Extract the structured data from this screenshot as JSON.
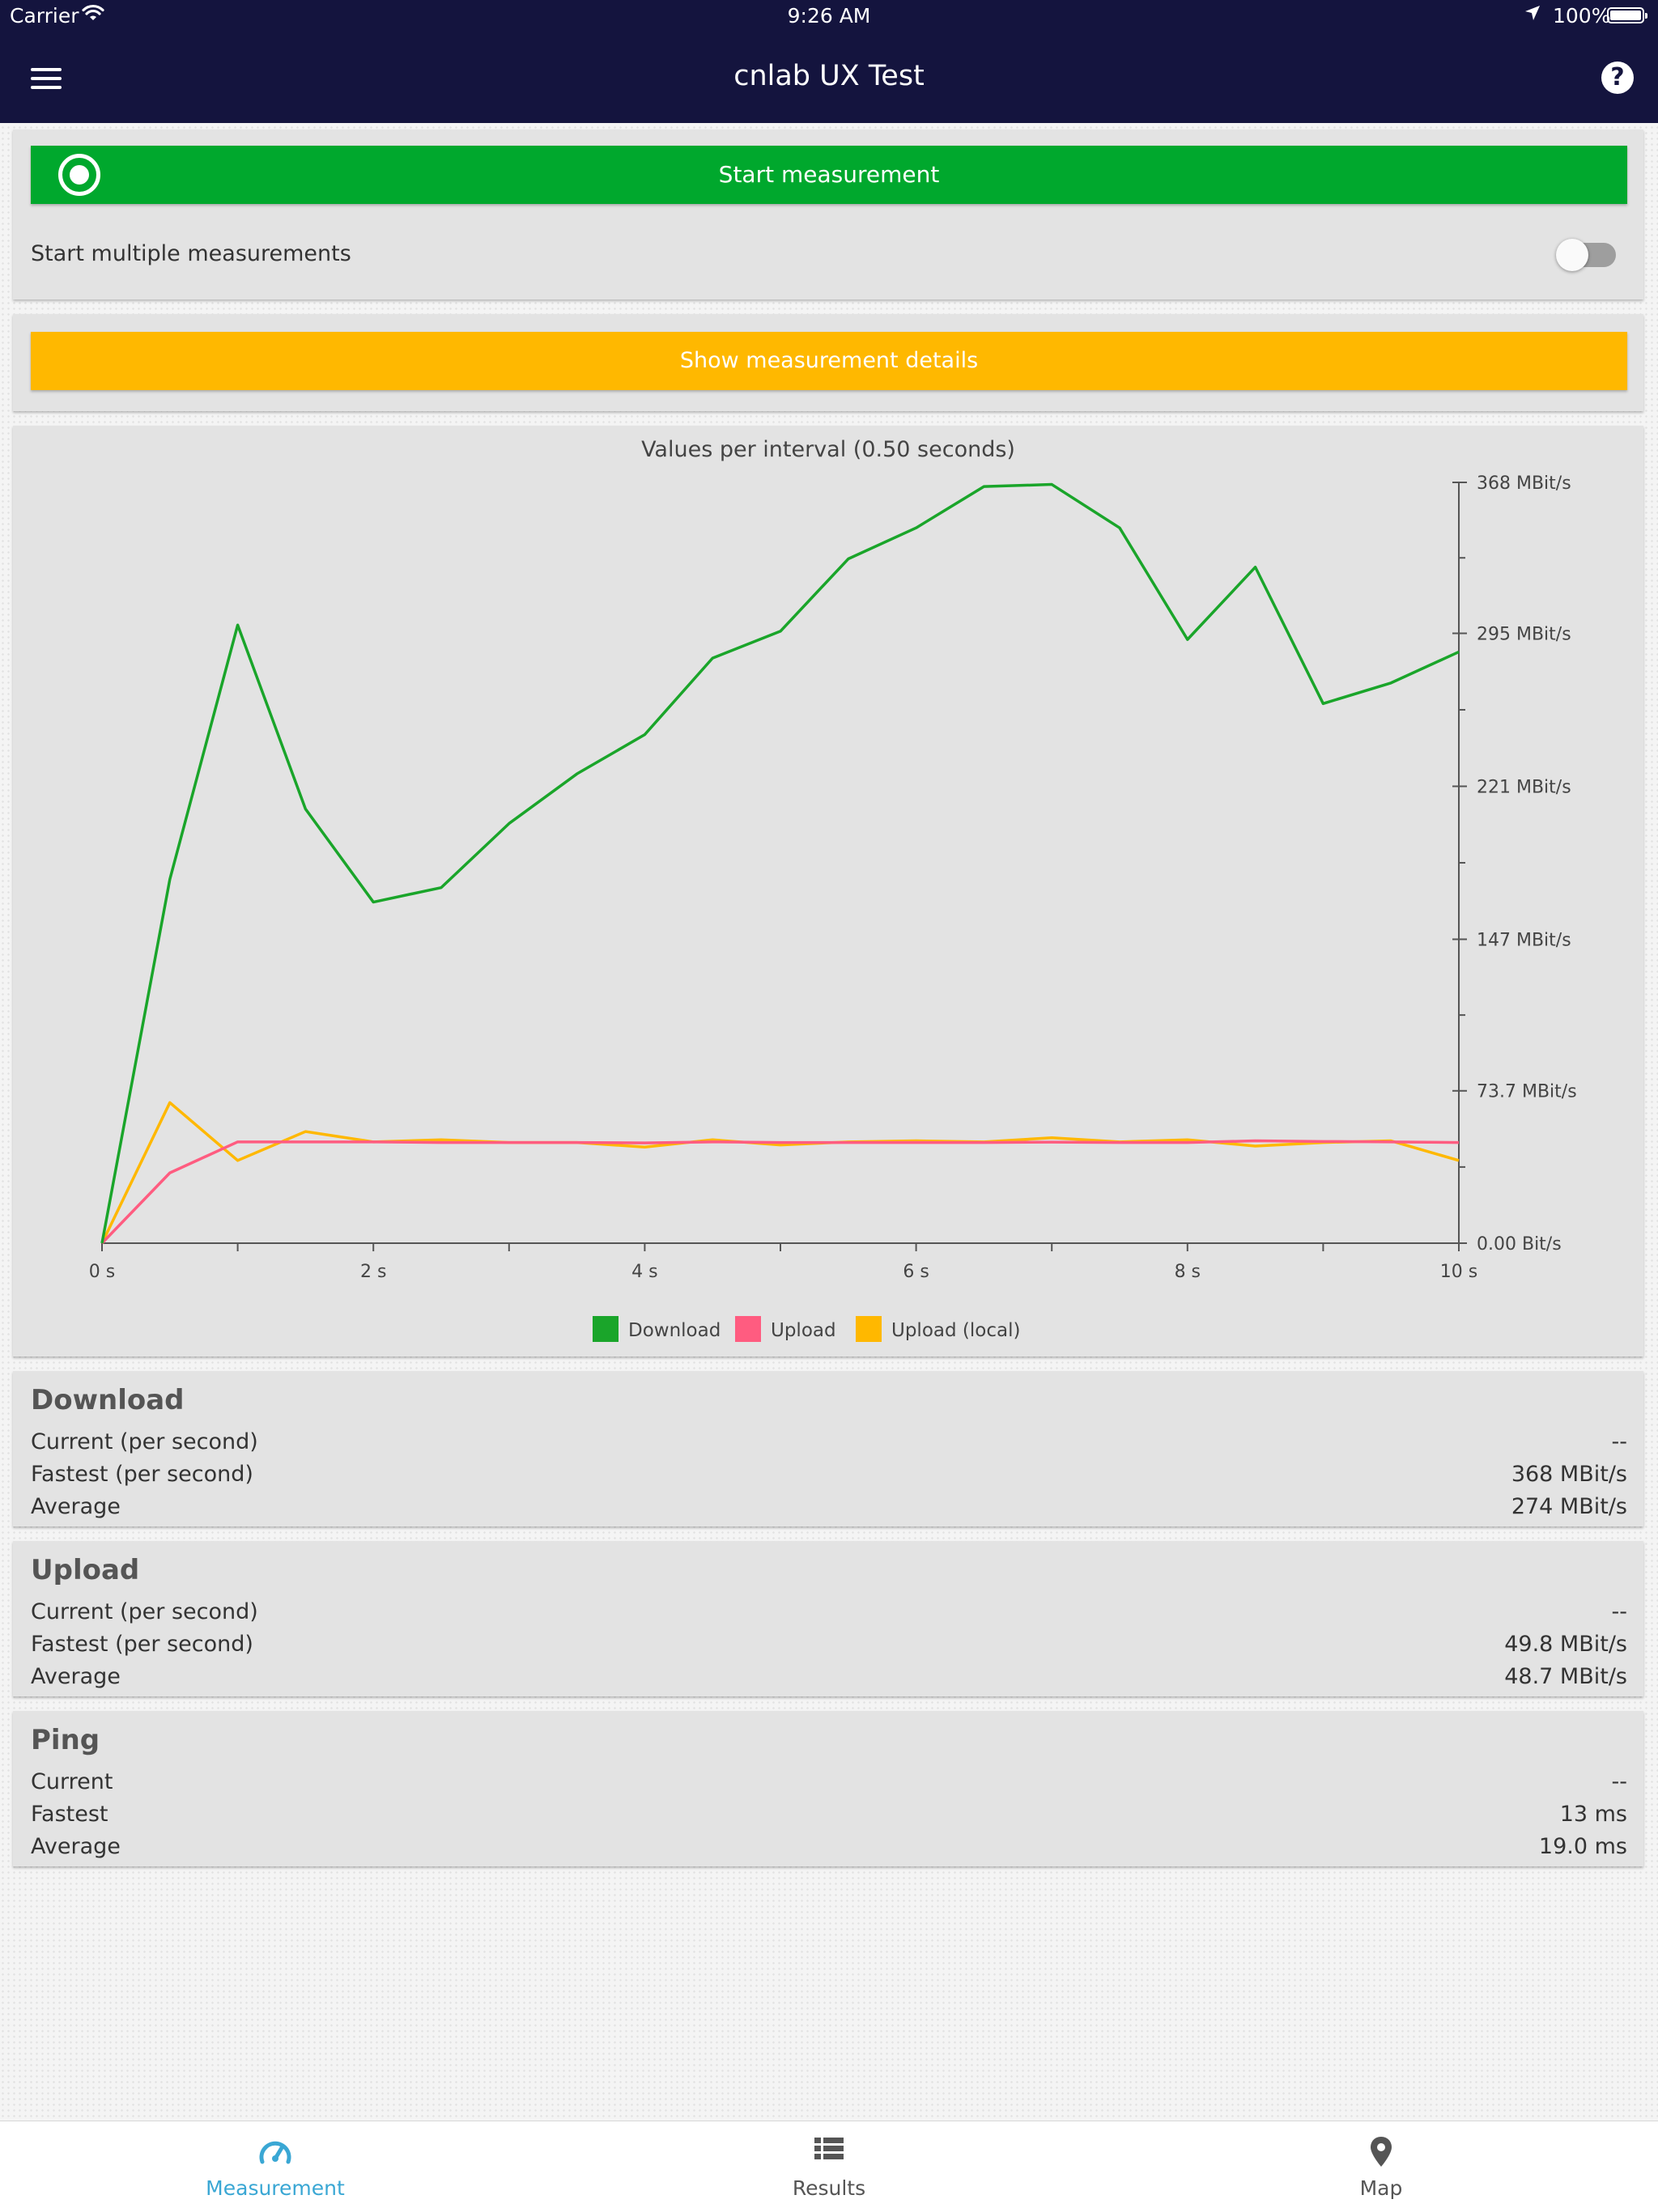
{
  "status_bar": {
    "carrier": "Carrier",
    "time": "9:26 AM",
    "battery": "100%",
    "icons": [
      "wifi-icon",
      "location-arrow-icon",
      "battery-icon"
    ]
  },
  "nav": {
    "title": "cnlab UX Test",
    "menu_icon": "hamburger-menu-icon",
    "help_icon": "help-circle-icon",
    "help_glyph": "?"
  },
  "controls": {
    "start_label": "Start measurement",
    "start_color": "#00a82d",
    "multi_label": "Start multiple measurements",
    "multi_enabled": false,
    "details_label": "Show measurement details",
    "details_color": "#ffb800"
  },
  "chart_data": {
    "type": "line",
    "title": "Values per interval (0.50 seconds)",
    "x": [
      0,
      0.5,
      1,
      1.5,
      2,
      2.5,
      3,
      3.5,
      4,
      4.5,
      5,
      5.5,
      6,
      6.5,
      7,
      7.5,
      8,
      8.5,
      9,
      9.5,
      10
    ],
    "x_ticks": [
      {
        "value": 0,
        "label": "0 s"
      },
      {
        "value": 2,
        "label": "2 s"
      },
      {
        "value": 4,
        "label": "4 s"
      },
      {
        "value": 6,
        "label": "6 s"
      },
      {
        "value": 8,
        "label": "8 s"
      },
      {
        "value": 10,
        "label": "10 s"
      }
    ],
    "xlim": [
      0,
      10
    ],
    "y_ticks": [
      {
        "value": 0,
        "label": "0.00 Bit/s"
      },
      {
        "value": 73.7,
        "label": "73.7 MBit/s"
      },
      {
        "value": 147,
        "label": "147 MBit/s"
      },
      {
        "value": 221,
        "label": "221 MBit/s"
      },
      {
        "value": 295,
        "label": "295 MBit/s"
      },
      {
        "value": 368,
        "label": "368 MBit/s"
      }
    ],
    "ylim": [
      0,
      368
    ],
    "y_axis_side": "right",
    "series": [
      {
        "name": "Download",
        "color": "#1aa52a",
        "values": [
          0,
          176,
          299,
          210,
          165,
          172,
          203,
          227,
          246,
          283,
          296,
          331,
          346,
          366,
          367,
          346,
          292,
          327,
          261,
          271,
          286
        ]
      },
      {
        "name": "Upload",
        "color": "#ff5c80",
        "values": [
          0,
          34,
          49,
          49,
          49,
          48.7,
          48.7,
          48.7,
          48.5,
          49,
          48.7,
          48.7,
          48.7,
          48.7,
          48.9,
          48.7,
          48.7,
          49.5,
          49.2,
          49,
          48.7
        ]
      },
      {
        "name": "Upload (local)",
        "color": "#ffb800",
        "values": [
          0,
          68,
          40,
          54,
          49,
          50,
          48.7,
          48.7,
          46.5,
          50,
          47.5,
          49,
          49.5,
          49,
          51,
          49,
          50,
          47,
          48.7,
          49.5,
          40
        ]
      }
    ],
    "legend_position": "bottom-center"
  },
  "stats": {
    "download": {
      "title": "Download",
      "rows": [
        {
          "label": "Current (per second)",
          "value": "--"
        },
        {
          "label": "Fastest (per second)",
          "value": "368 MBit/s"
        },
        {
          "label": "Average",
          "value": "274 MBit/s"
        }
      ]
    },
    "upload": {
      "title": "Upload",
      "rows": [
        {
          "label": "Current (per second)",
          "value": "--"
        },
        {
          "label": "Fastest (per second)",
          "value": "49.8 MBit/s"
        },
        {
          "label": "Average",
          "value": "48.7 MBit/s"
        }
      ]
    },
    "ping": {
      "title": "Ping",
      "rows": [
        {
          "label": "Current",
          "value": "--"
        },
        {
          "label": "Fastest",
          "value": "13 ms"
        },
        {
          "label": "Average",
          "value": "19.0 ms"
        }
      ]
    }
  },
  "tabbar": {
    "tabs": [
      {
        "label": "Measurement",
        "icon": "speedometer-icon",
        "active": true
      },
      {
        "label": "Results",
        "icon": "list-icon",
        "active": false
      },
      {
        "label": "Map",
        "icon": "map-pin-icon",
        "active": false
      }
    ],
    "active_color": "#3aa7d4",
    "inactive_color": "#555555"
  }
}
